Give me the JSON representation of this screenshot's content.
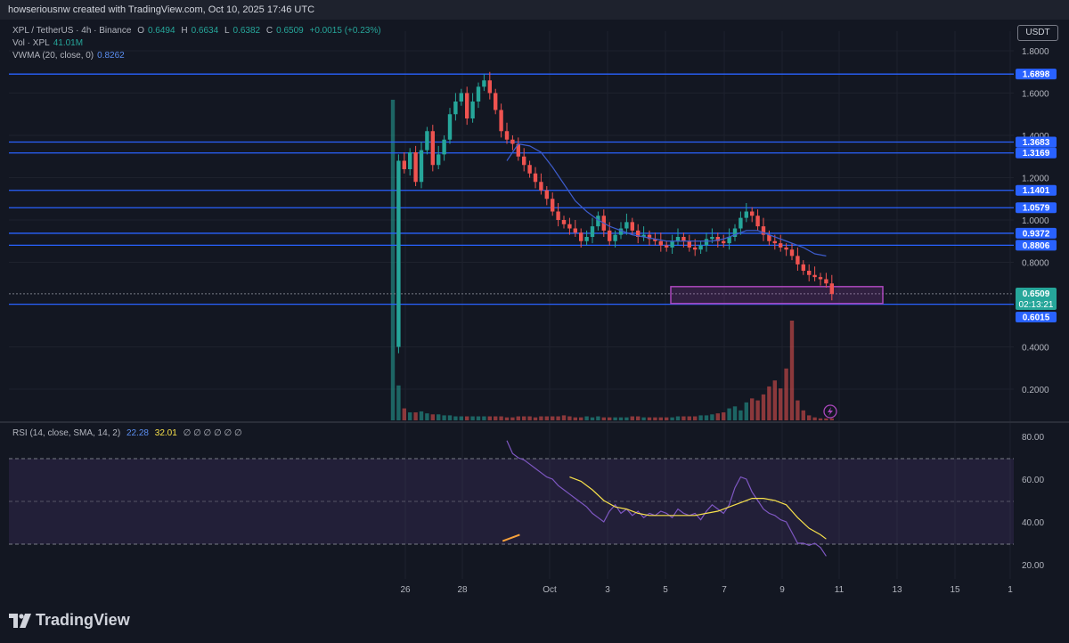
{
  "header": {
    "credit": "howseriousnw created with TradingView.com, Oct 10, 2025 17:46 UTC",
    "currency_button": "USDT"
  },
  "legend": {
    "symbol": "XPL / TetherUS · 4h · Binance",
    "o_label": "O",
    "o_value": "0.6494",
    "h_label": "H",
    "h_value": "0.6634",
    "l_label": "L",
    "l_value": "0.6382",
    "c_label": "C",
    "c_value": "0.6509",
    "change": "+0.0015 (+0.23%)",
    "vol_label": "Vol · XPL",
    "vol_value": "41.01M",
    "vwma_label": "VWMA (20, close, 0)",
    "vwma_value": "0.8262",
    "rsi_label": "RSI (14, close, SMA, 14, 2)",
    "rsi_value": "22.28",
    "rsi_ma_value": "32.01",
    "rsi_extra": "∅ ∅ ∅ ∅ ∅ ∅"
  },
  "branding": {
    "logo_text": "TradingView"
  },
  "colors": {
    "up": "#26a69a",
    "down": "#ef5350",
    "level": "#2962ff",
    "vwma": "#3d5ccc",
    "rsi": "#7e57c2",
    "rsi_ma": "#f7e04b",
    "box": "#ab47bc"
  },
  "chart_data": {
    "type": "candlestick",
    "price_axis": {
      "ticks": [
        "1.8000",
        "1.6000",
        "1.4000",
        "1.2000",
        "1.0000",
        "0.8000",
        "0.4000",
        "0.2000"
      ]
    },
    "levels": [
      "1.6898",
      "1.3683",
      "1.3169",
      "1.1401",
      "1.0579",
      "0.9372",
      "0.8806",
      "0.6015"
    ],
    "current_price": "0.6509",
    "countdown": "02:13:21",
    "zone": {
      "from_price": 0.605,
      "to_price": 0.685
    },
    "x_axis": {
      "ticks": [
        "26",
        "28",
        "Oct",
        "3",
        "5",
        "7",
        "9",
        "11",
        "13",
        "15",
        "1"
      ]
    },
    "rsi_axis": {
      "ticks": [
        "80.00",
        "60.00",
        "40.00",
        "20.00"
      ]
    },
    "rsi_bands": {
      "upper": 70,
      "middle": 50,
      "lower": 30
    },
    "price_path": [
      [
        0,
        0.4
      ],
      [
        1,
        1.28
      ],
      [
        2,
        1.24
      ],
      [
        3,
        1.32
      ],
      [
        4,
        1.18
      ],
      [
        5,
        1.33
      ],
      [
        6,
        1.42
      ],
      [
        7,
        1.26
      ],
      [
        8,
        1.31
      ],
      [
        9,
        1.38
      ],
      [
        10,
        1.5
      ],
      [
        11,
        1.56
      ],
      [
        12,
        1.6
      ],
      [
        13,
        1.48
      ],
      [
        14,
        1.56
      ],
      [
        15,
        1.63
      ],
      [
        16,
        1.66
      ],
      [
        17,
        1.6
      ],
      [
        18,
        1.52
      ],
      [
        19,
        1.42
      ],
      [
        20,
        1.38
      ],
      [
        21,
        1.36
      ],
      [
        22,
        1.3
      ],
      [
        23,
        1.26
      ],
      [
        24,
        1.22
      ],
      [
        25,
        1.18
      ],
      [
        26,
        1.14
      ],
      [
        27,
        1.1
      ],
      [
        28,
        1.04
      ],
      [
        29,
        1.0
      ],
      [
        30,
        0.98
      ],
      [
        31,
        0.96
      ],
      [
        32,
        0.94
      ],
      [
        33,
        0.9
      ],
      [
        34,
        0.92
      ],
      [
        35,
        0.97
      ],
      [
        36,
        1.02
      ],
      [
        37,
        0.95
      ],
      [
        38,
        0.9
      ],
      [
        39,
        0.93
      ],
      [
        40,
        0.96
      ],
      [
        41,
        0.99
      ],
      [
        42,
        0.95
      ],
      [
        43,
        0.92
      ],
      [
        44,
        0.93
      ],
      [
        45,
        0.91
      ],
      [
        46,
        0.9
      ],
      [
        47,
        0.88
      ],
      [
        48,
        0.87
      ],
      [
        49,
        0.9
      ],
      [
        50,
        0.92
      ],
      [
        51,
        0.9
      ],
      [
        52,
        0.87
      ],
      [
        53,
        0.86
      ],
      [
        54,
        0.88
      ],
      [
        55,
        0.91
      ],
      [
        56,
        0.92
      ],
      [
        57,
        0.9
      ],
      [
        58,
        0.89
      ],
      [
        59,
        0.92
      ],
      [
        60,
        0.96
      ],
      [
        61,
        1.01
      ],
      [
        62,
        1.04
      ],
      [
        63,
        1.02
      ],
      [
        64,
        0.97
      ],
      [
        65,
        0.93
      ],
      [
        66,
        0.9
      ],
      [
        67,
        0.89
      ],
      [
        68,
        0.87
      ],
      [
        69,
        0.86
      ],
      [
        70,
        0.83
      ],
      [
        71,
        0.79
      ],
      [
        72,
        0.76
      ],
      [
        73,
        0.74
      ],
      [
        74,
        0.73
      ],
      [
        75,
        0.72
      ],
      [
        76,
        0.7
      ],
      [
        77,
        0.65
      ]
    ],
    "vwma_path": [
      [
        20,
        1.28
      ],
      [
        22,
        1.36
      ],
      [
        24,
        1.35
      ],
      [
        26,
        1.32
      ],
      [
        28,
        1.25
      ],
      [
        30,
        1.17
      ],
      [
        32,
        1.09
      ],
      [
        34,
        1.04
      ],
      [
        36,
        1.0
      ],
      [
        38,
        0.97
      ],
      [
        40,
        0.95
      ],
      [
        42,
        0.93
      ],
      [
        44,
        0.92
      ],
      [
        46,
        0.91
      ],
      [
        48,
        0.9
      ],
      [
        50,
        0.9
      ],
      [
        52,
        0.9
      ],
      [
        54,
        0.9
      ],
      [
        56,
        0.9
      ],
      [
        58,
        0.91
      ],
      [
        60,
        0.93
      ],
      [
        62,
        0.95
      ],
      [
        64,
        0.95
      ],
      [
        66,
        0.93
      ],
      [
        68,
        0.91
      ],
      [
        70,
        0.89
      ],
      [
        72,
        0.87
      ],
      [
        74,
        0.84
      ],
      [
        76,
        0.83
      ]
    ],
    "volume": [
      100,
      35,
      12,
      8,
      8,
      9,
      7,
      6,
      6,
      5,
      5,
      4,
      4,
      4,
      4,
      4,
      4,
      4,
      4,
      4,
      3,
      3,
      4,
      4,
      4,
      3,
      4,
      4,
      4,
      4,
      5,
      4,
      3,
      3,
      4,
      3,
      4,
      3,
      3,
      3,
      3,
      3,
      4,
      4,
      3,
      3,
      3,
      3,
      3,
      3,
      4,
      4,
      4,
      4,
      5,
      5,
      6,
      7,
      8,
      12,
      14,
      10,
      18,
      22,
      20,
      26,
      34,
      40,
      32,
      52,
      100,
      20,
      10,
      5,
      3,
      2,
      2,
      2
    ],
    "rsi_path": [
      [
        20,
        78
      ],
      [
        21,
        72
      ],
      [
        22,
        70
      ],
      [
        23,
        69
      ],
      [
        24,
        67
      ],
      [
        25,
        65
      ],
      [
        26,
        63
      ],
      [
        27,
        61
      ],
      [
        28,
        60
      ],
      [
        29,
        57
      ],
      [
        30,
        55
      ],
      [
        31,
        53
      ],
      [
        32,
        51
      ],
      [
        33,
        49
      ],
      [
        34,
        47
      ],
      [
        35,
        44
      ],
      [
        36,
        42
      ],
      [
        37,
        40
      ],
      [
        38,
        45
      ],
      [
        39,
        48
      ],
      [
        40,
        44
      ],
      [
        41,
        46
      ],
      [
        42,
        43
      ],
      [
        43,
        45
      ],
      [
        44,
        42
      ],
      [
        45,
        44
      ],
      [
        46,
        43
      ],
      [
        47,
        45
      ],
      [
        48,
        44
      ],
      [
        49,
        42
      ],
      [
        50,
        46
      ],
      [
        51,
        44
      ],
      [
        52,
        43
      ],
      [
        53,
        44
      ],
      [
        54,
        41
      ],
      [
        55,
        45
      ],
      [
        56,
        48
      ],
      [
        57,
        46
      ],
      [
        58,
        44
      ],
      [
        59,
        48
      ],
      [
        60,
        56
      ],
      [
        61,
        61
      ],
      [
        62,
        60
      ],
      [
        63,
        54
      ],
      [
        64,
        50
      ],
      [
        65,
        46
      ],
      [
        66,
        44
      ],
      [
        67,
        43
      ],
      [
        68,
        41
      ],
      [
        69,
        40
      ],
      [
        70,
        35
      ],
      [
        71,
        30
      ],
      [
        72,
        30
      ],
      [
        73,
        29
      ],
      [
        74,
        30
      ],
      [
        75,
        28
      ],
      [
        76,
        24
      ]
    ],
    "rsi_ma_path": [
      [
        31,
        61
      ],
      [
        33,
        59
      ],
      [
        35,
        55
      ],
      [
        37,
        50
      ],
      [
        39,
        47
      ],
      [
        41,
        46
      ],
      [
        43,
        44
      ],
      [
        45,
        43
      ],
      [
        47,
        43
      ],
      [
        49,
        43
      ],
      [
        51,
        43
      ],
      [
        53,
        43
      ],
      [
        55,
        44
      ],
      [
        57,
        45
      ],
      [
        59,
        47
      ],
      [
        61,
        49
      ],
      [
        63,
        51
      ],
      [
        65,
        51
      ],
      [
        67,
        50
      ],
      [
        69,
        48
      ],
      [
        71,
        42
      ],
      [
        73,
        37
      ],
      [
        75,
        34
      ],
      [
        76,
        32
      ]
    ],
    "rsi_divergence": [
      [
        13,
        31
      ],
      [
        16,
        34
      ]
    ]
  }
}
